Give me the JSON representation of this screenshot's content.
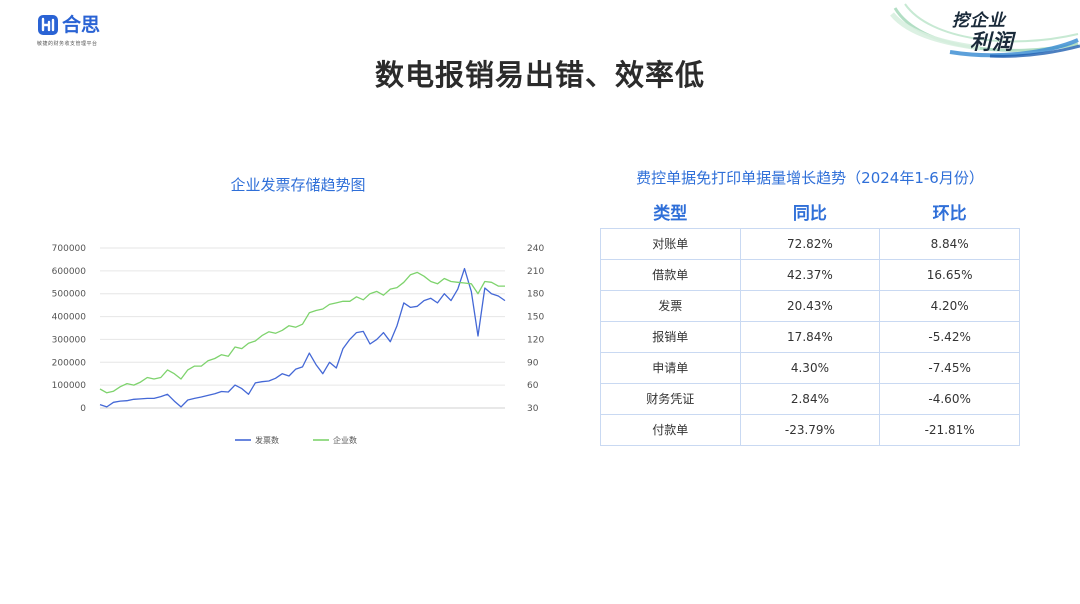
{
  "logo": {
    "name": "合思",
    "slogan": "敏捷的财务收支管理平台"
  },
  "brand": {
    "line1": "挖企业",
    "line2": "利润"
  },
  "title": "数电报销易出错、效率低",
  "chart": {
    "title": "企业发票存储趋势图",
    "legend": [
      "发票数",
      "企业数"
    ]
  },
  "chart_data": {
    "type": "line",
    "title": "企业发票存储趋势图",
    "y_left_ticks": [
      "0",
      "100000",
      "200000",
      "300000",
      "400000",
      "500000",
      "600000",
      "700000"
    ],
    "y_right_ticks": [
      "30",
      "60",
      "90",
      "120",
      "150",
      "180",
      "210",
      "240"
    ],
    "ylim_left": [
      0,
      700000
    ],
    "ylim_right": [
      30,
      240
    ],
    "grid": true,
    "legend_position": "bottom",
    "series": [
      {
        "name": "发票数",
        "axis": "left",
        "color": "#4468d6",
        "values": [
          15000,
          5000,
          25000,
          30000,
          32000,
          38000,
          40000,
          42000,
          42000,
          50000,
          60000,
          30000,
          5000,
          35000,
          42000,
          48000,
          55000,
          62000,
          72000,
          70000,
          100000,
          85000,
          60000,
          110000,
          115000,
          118000,
          130000,
          150000,
          140000,
          170000,
          180000,
          240000,
          190000,
          150000,
          200000,
          175000,
          260000,
          300000,
          330000,
          335000,
          280000,
          300000,
          330000,
          290000,
          360000,
          460000,
          440000,
          445000,
          470000,
          480000,
          460000,
          500000,
          470000,
          520000,
          610000,
          510000,
          315000,
          525000,
          500000,
          490000,
          470000
        ]
      },
      {
        "name": "企业数",
        "axis": "right",
        "color": "#7ed36d",
        "values": [
          55,
          50,
          52,
          58,
          62,
          60,
          64,
          70,
          68,
          70,
          80,
          75,
          68,
          80,
          85,
          85,
          92,
          95,
          100,
          98,
          110,
          108,
          115,
          118,
          125,
          130,
          128,
          132,
          138,
          136,
          140,
          155,
          158,
          160,
          166,
          168,
          170,
          170,
          176,
          172,
          180,
          183,
          178,
          186,
          188,
          195,
          205,
          208,
          203,
          196,
          193,
          200,
          196,
          195,
          194,
          193,
          180,
          196,
          195,
          190,
          190
        ]
      }
    ]
  },
  "table": {
    "title": "费控单据免打印单据量增长趋势（2024年1-6月份）",
    "headers": [
      "类型",
      "同比",
      "环比"
    ],
    "rows": [
      [
        "对账单",
        "72.82%",
        "8.84%"
      ],
      [
        "借款单",
        "42.37%",
        "16.65%"
      ],
      [
        "发票",
        "20.43%",
        "4.20%"
      ],
      [
        "报销单",
        "17.84%",
        "-5.42%"
      ],
      [
        "申请单",
        "4.30%",
        "-7.45%"
      ],
      [
        "财务凭证",
        "2.84%",
        "-4.60%"
      ],
      [
        "付款单",
        "-23.79%",
        "-21.81%"
      ]
    ]
  }
}
